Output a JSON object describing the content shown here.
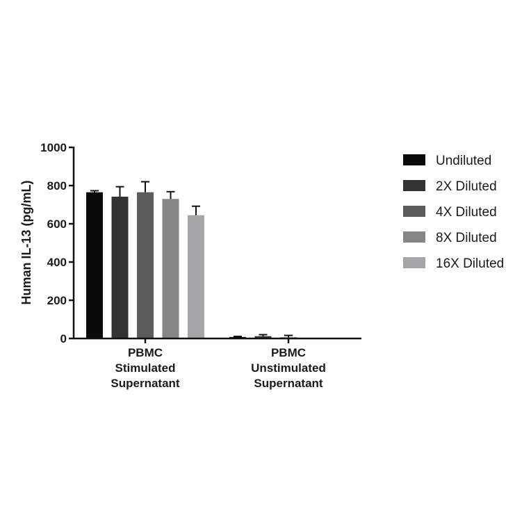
{
  "chart_data": {
    "type": "bar",
    "ylabel": "Human IL-13 (pg/mL)",
    "xlabel": "",
    "title": "",
    "ylim": [
      0,
      1000
    ],
    "yticks": [
      0,
      200,
      400,
      600,
      800,
      1000
    ],
    "categories": [
      [
        "PBMC",
        "Stimulated",
        "Supernatant"
      ],
      [
        "PBMC",
        "Unstimulated",
        "Supernatant"
      ]
    ],
    "legend_position": "right",
    "series": [
      {
        "name": "Undiluted",
        "color": "#0a0a0a",
        "values": [
          765,
          8
        ],
        "errors": [
          8,
          3
        ]
      },
      {
        "name": "2X Diluted",
        "color": "#333333",
        "values": [
          742,
          12
        ],
        "errors": [
          52,
          8
        ]
      },
      {
        "name": "4X Diluted",
        "color": "#5c5c5c",
        "values": [
          765,
          6
        ],
        "errors": [
          55,
          10
        ]
      },
      {
        "name": "8X Diluted",
        "color": "#868686",
        "values": [
          730,
          0
        ],
        "errors": [
          38,
          0
        ]
      },
      {
        "name": "16X Diluted",
        "color": "#a6a6a8",
        "values": [
          645,
          0
        ],
        "errors": [
          47,
          0
        ]
      }
    ]
  }
}
